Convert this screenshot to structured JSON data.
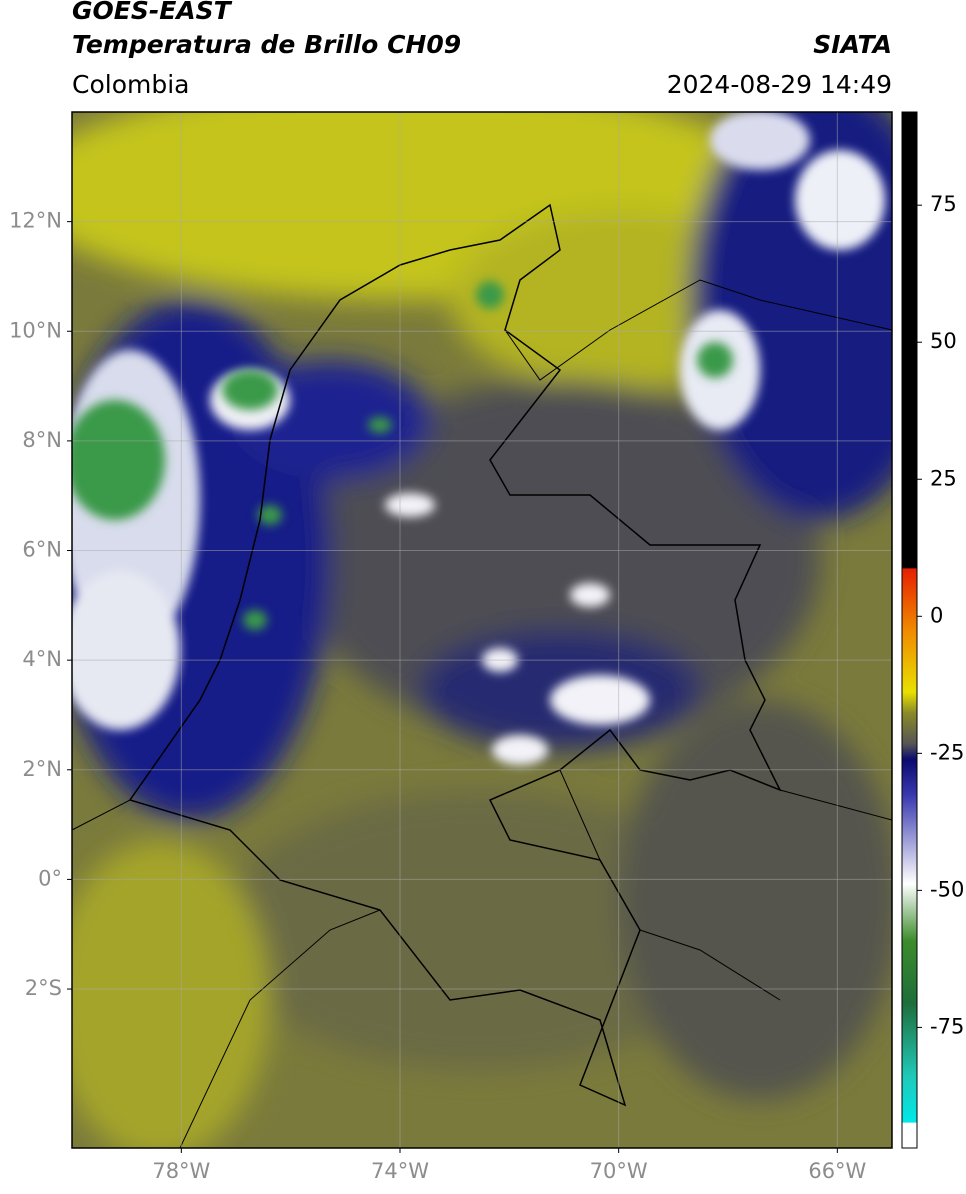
{
  "header": {
    "title": "GOES-EAST",
    "subtitle": "Temperatura de Brillo CH09",
    "source": "SIATA",
    "region": "Colombia",
    "datetime": "2024-08-29 14:49"
  },
  "map": {
    "lat_range": [
      -4.9,
      14
    ],
    "lon_range": [
      -80,
      -65
    ],
    "lat_ticks": [
      {
        "value": 12,
        "label": "12°N"
      },
      {
        "value": 10,
        "label": "10°N"
      },
      {
        "value": 8,
        "label": "8°N"
      },
      {
        "value": 6,
        "label": "6°N"
      },
      {
        "value": 4,
        "label": "4°N"
      },
      {
        "value": 2,
        "label": "2°N"
      },
      {
        "value": 0,
        "label": "0°"
      },
      {
        "value": -2,
        "label": "2°S"
      }
    ],
    "lon_ticks": [
      {
        "value": -78,
        "label": "78°W"
      },
      {
        "value": -74,
        "label": "74°W"
      },
      {
        "value": -70,
        "label": "70°W"
      },
      {
        "value": -66,
        "label": "66°W"
      }
    ]
  },
  "colorbar": {
    "range": [
      -97,
      92
    ],
    "ticks": [
      75,
      50,
      25,
      0,
      -25,
      -50,
      -75
    ]
  }
}
